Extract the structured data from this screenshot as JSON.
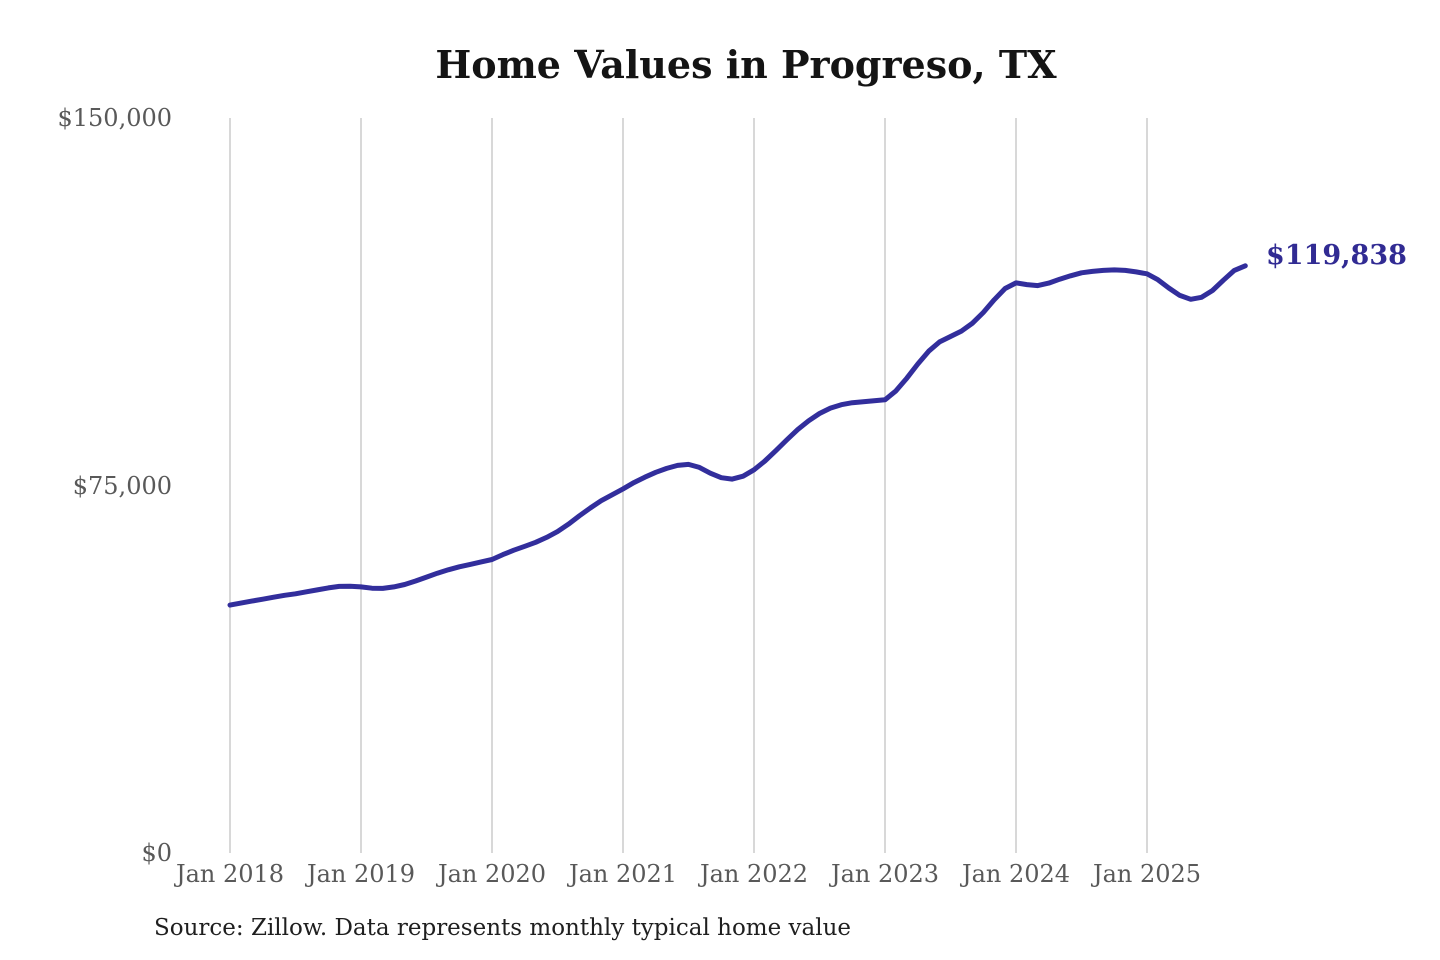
{
  "page": {
    "title": "Home Values in Progreso, TX",
    "source_note": "Source: Zillow. Data represents monthly typical home value",
    "end_label": "$119,838"
  },
  "colors": {
    "line": "#322e9c",
    "grid": "#cbcbcb",
    "axis_text": "#595959",
    "title_text": "#141414",
    "source_text": "#1f1f1f",
    "end_label_text": "#312b93",
    "background": "#ffffff"
  },
  "chart_data": {
    "type": "line",
    "title": "Home Values in Progreso, TX",
    "xlabel": "",
    "ylabel": "",
    "ylim": [
      0,
      150000
    ],
    "grid": "vertical-only",
    "legend": "none",
    "y_ticks": [
      {
        "value": 0,
        "label": "$0"
      },
      {
        "value": 75000,
        "label": "$75,000"
      },
      {
        "value": 150000,
        "label": "$150,000"
      }
    ],
    "x_ticks": [
      {
        "month": "2018-01",
        "label": "Jan 2018"
      },
      {
        "month": "2019-01",
        "label": "Jan 2019"
      },
      {
        "month": "2020-01",
        "label": "Jan 2020"
      },
      {
        "month": "2021-01",
        "label": "Jan 2021"
      },
      {
        "month": "2022-01",
        "label": "Jan 2022"
      },
      {
        "month": "2023-01",
        "label": "Jan 2023"
      },
      {
        "month": "2024-01",
        "label": "Jan 2024"
      },
      {
        "month": "2025-01",
        "label": "Jan 2025"
      }
    ],
    "annotation": {
      "text": "$119,838",
      "attached_to": "last-point"
    },
    "series": [
      {
        "name": "Monthly typical home value",
        "final_value": 119838,
        "months": [
          "2018-01",
          "2018-02",
          "2018-03",
          "2018-04",
          "2018-05",
          "2018-06",
          "2018-07",
          "2018-08",
          "2018-09",
          "2018-10",
          "2018-11",
          "2018-12",
          "2019-01",
          "2019-02",
          "2019-03",
          "2019-04",
          "2019-05",
          "2019-06",
          "2019-07",
          "2019-08",
          "2019-09",
          "2019-10",
          "2019-11",
          "2019-12",
          "2020-01",
          "2020-02",
          "2020-03",
          "2020-04",
          "2020-05",
          "2020-06",
          "2020-07",
          "2020-08",
          "2020-09",
          "2020-10",
          "2020-11",
          "2020-12",
          "2021-01",
          "2021-02",
          "2021-03",
          "2021-04",
          "2021-05",
          "2021-06",
          "2021-07",
          "2021-08",
          "2021-09",
          "2021-10",
          "2021-11",
          "2021-12",
          "2022-01",
          "2022-02",
          "2022-03",
          "2022-04",
          "2022-05",
          "2022-06",
          "2022-07",
          "2022-08",
          "2022-09",
          "2022-10",
          "2022-11",
          "2022-12",
          "2023-01",
          "2023-02",
          "2023-03",
          "2023-04",
          "2023-05",
          "2023-06",
          "2023-07",
          "2023-08",
          "2023-09",
          "2023-10",
          "2023-11",
          "2023-12",
          "2024-01",
          "2024-02",
          "2024-03",
          "2024-04",
          "2024-05",
          "2024-06",
          "2024-07",
          "2024-08",
          "2024-09",
          "2024-10",
          "2024-11",
          "2024-12",
          "2025-01",
          "2025-02",
          "2025-03",
          "2025-04",
          "2025-05",
          "2025-06",
          "2025-07",
          "2025-08",
          "2025-09",
          "2025-10"
        ],
        "values": [
          50600,
          51000,
          51400,
          51800,
          52200,
          52600,
          52900,
          53300,
          53700,
          54100,
          54400,
          54450,
          54300,
          54050,
          54000,
          54300,
          54800,
          55500,
          56300,
          57100,
          57800,
          58400,
          58900,
          59400,
          59900,
          60900,
          61800,
          62600,
          63400,
          64400,
          65600,
          67100,
          68800,
          70400,
          71900,
          73100,
          74300,
          75600,
          76700,
          77700,
          78500,
          79100,
          79300,
          78700,
          77500,
          76600,
          76300,
          76900,
          78200,
          80000,
          82100,
          84300,
          86400,
          88200,
          89700,
          90800,
          91500,
          91900,
          92100,
          92300,
          92500,
          94300,
          96900,
          99800,
          102400,
          104300,
          105400,
          106500,
          108100,
          110300,
          112900,
          115200,
          116350,
          116000,
          115800,
          116300,
          117100,
          117800,
          118400,
          118700,
          118900,
          119000,
          118900,
          118600,
          118200,
          117000,
          115300,
          113800,
          113000,
          113400,
          114800,
          116900,
          118900,
          119838
        ]
      }
    ]
  }
}
